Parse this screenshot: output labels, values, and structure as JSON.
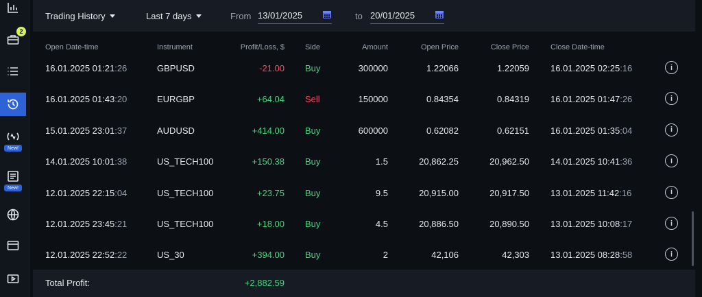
{
  "sidebar": {
    "items": [
      {
        "name": "chart-icon"
      },
      {
        "name": "portfolio-icon",
        "badge": "2"
      },
      {
        "name": "list-icon"
      },
      {
        "name": "history-icon",
        "active": true
      },
      {
        "name": "signals-icon",
        "new": "New!"
      },
      {
        "name": "news-icon",
        "new": "New!"
      },
      {
        "name": "globe-icon"
      },
      {
        "name": "calendar-icon"
      },
      {
        "name": "video-icon"
      }
    ]
  },
  "filters": {
    "history_type": "Trading History",
    "period": "Last 7 days",
    "from_label": "From",
    "from_date": "13/01/2025",
    "to_label": "to",
    "to_date": "20/01/2025"
  },
  "table": {
    "headers": [
      "Open Date-time",
      "Instrument",
      "Profit/Loss, $",
      "Side",
      "Amount",
      "Open Price",
      "Close Price",
      "Close Date-time"
    ],
    "rows": [
      {
        "open_dt": "16.01.2025 01:21",
        "open_sec": ":26",
        "instrument": "GBPUSD",
        "pl": "-21.00",
        "pl_sign": "neg",
        "side": "Buy",
        "amount": "300000",
        "open_price": "1.22066",
        "close_price": "1.22059",
        "close_dt": "16.01.2025 02:25",
        "close_sec": ":16"
      },
      {
        "open_dt": "16.01.2025 01:43",
        "open_sec": ":20",
        "instrument": "EURGBP",
        "pl": "+64.04",
        "pl_sign": "pos",
        "side": "Sell",
        "amount": "150000",
        "open_price": "0.84354",
        "close_price": "0.84319",
        "close_dt": "16.01.2025 01:47",
        "close_sec": ":26"
      },
      {
        "open_dt": "15.01.2025 23:01",
        "open_sec": ":37",
        "instrument": "AUDUSD",
        "pl": "+414.00",
        "pl_sign": "pos",
        "side": "Buy",
        "amount": "600000",
        "open_price": "0.62082",
        "close_price": "0.62151",
        "close_dt": "16.01.2025 01:35",
        "close_sec": ":04"
      },
      {
        "open_dt": "14.01.2025 10:01",
        "open_sec": ":38",
        "instrument": "US_TECH100",
        "pl": "+150.38",
        "pl_sign": "pos",
        "side": "Buy",
        "amount": "1.5",
        "open_price": "20,862.25",
        "close_price": "20,962.50",
        "close_dt": "14.01.2025 10:41",
        "close_sec": ":36"
      },
      {
        "open_dt": "12.01.2025 22:15",
        "open_sec": ":04",
        "instrument": "US_TECH100",
        "pl": "+23.75",
        "pl_sign": "pos",
        "side": "Buy",
        "amount": "9.5",
        "open_price": "20,915.00",
        "close_price": "20,917.50",
        "close_dt": "13.01.2025 11:42",
        "close_sec": ":16"
      },
      {
        "open_dt": "12.01.2025 23:45",
        "open_sec": ":21",
        "instrument": "US_TECH100",
        "pl": "+18.00",
        "pl_sign": "pos",
        "side": "Buy",
        "amount": "4.5",
        "open_price": "20,886.50",
        "close_price": "20,890.50",
        "close_dt": "13.01.2025 10:08",
        "close_sec": ":17"
      },
      {
        "open_dt": "12.01.2025 22:52",
        "open_sec": ":22",
        "instrument": "US_30",
        "pl": "+394.00",
        "pl_sign": "pos",
        "side": "Buy",
        "amount": "2",
        "open_price": "42,106",
        "close_price": "42,303",
        "close_dt": "13.01.2025 08:28",
        "close_sec": ":58"
      }
    ],
    "total_label": "Total Profit:",
    "total_value": "+2,882.59"
  },
  "colors": {
    "accent": "#2e63d8",
    "profit": "#42d77d",
    "loss": "#ff4a5c",
    "badge": "#d6f25c"
  }
}
